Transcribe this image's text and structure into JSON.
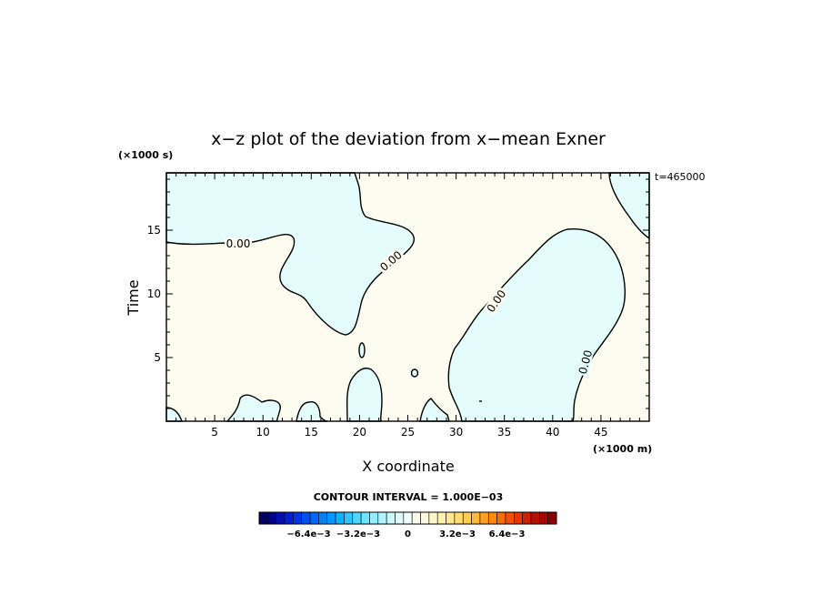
{
  "chart_data": {
    "type": "contour",
    "title": "x−z plot of the deviation from x−mean Exner",
    "xlabel": "X coordinate",
    "ylabel": "Time",
    "x_scale_label": "(×1000 m)",
    "y_scale_label": "(×1000 s)",
    "time_stamp": "t=465000",
    "xlim": [
      0,
      50
    ],
    "ylim": [
      0,
      19.5
    ],
    "x_ticks": [
      5,
      10,
      15,
      20,
      25,
      30,
      35,
      40,
      45
    ],
    "y_ticks": [
      5,
      10,
      15
    ],
    "contour_level_label": "0.00",
    "contour_interval_text": "CONTOUR INTERVAL = 1.000E−03",
    "colorbar": {
      "tick_labels": [
        "−6.4e−3",
        "−3.2e−3",
        "0",
        "3.2e−3",
        "6.4e−3"
      ],
      "tick_values": [
        -0.0064,
        -0.0032,
        0,
        0.0032,
        0.0064
      ],
      "range": [
        -0.0096,
        0.0096
      ],
      "colors": [
        "#000066",
        "#00008a",
        "#0010b0",
        "#0020d0",
        "#0035e6",
        "#0050f0",
        "#0068f5",
        "#0080f8",
        "#0098fa",
        "#10b0fc",
        "#30c4fd",
        "#50d6fe",
        "#70e4ff",
        "#90eefe",
        "#b0f4fd",
        "#ccf8fc",
        "#e0fbfb",
        "#f0fdfc",
        "#fcfcf0",
        "#fdfbe0",
        "#fef8c8",
        "#fff2b0",
        "#ffe890",
        "#ffdc70",
        "#ffcc50",
        "#ffb838",
        "#ffa020",
        "#ff8810",
        "#f86c08",
        "#f05000",
        "#e03800",
        "#cc2000",
        "#b81000",
        "#a00800",
        "#880000"
      ]
    },
    "fill_colors": {
      "negative": "#e4fcfc",
      "positive": "#fcfcf0"
    }
  }
}
